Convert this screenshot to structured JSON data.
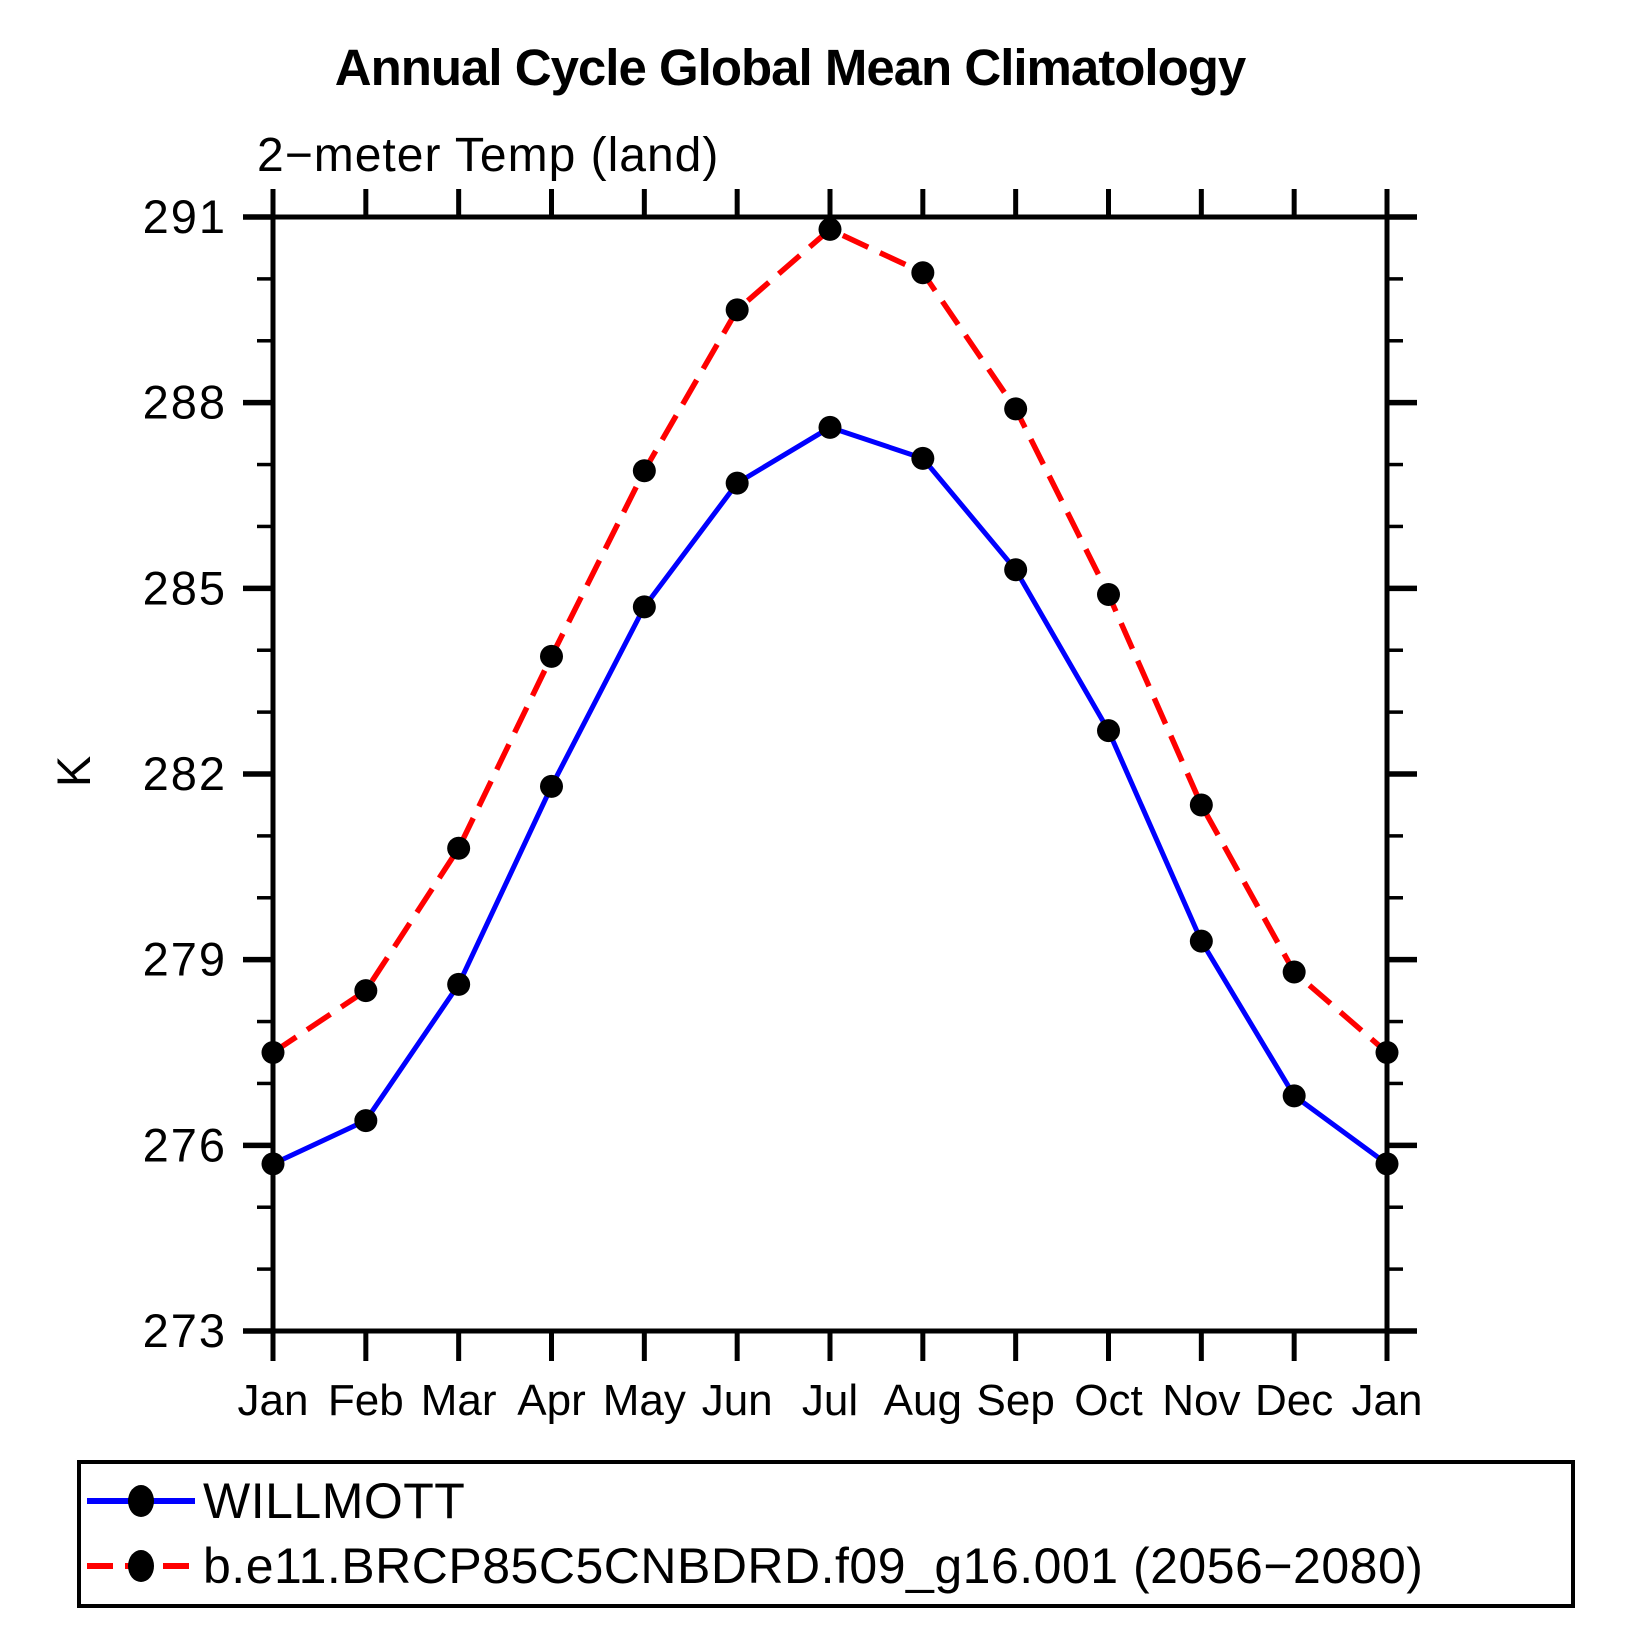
{
  "title": "Annual Cycle Global Mean Climatology",
  "chart_data": {
    "type": "line",
    "title": "Annual Cycle Global Mean Climatology",
    "subtitle": "2−meter Temp (land)",
    "ylabel": "K",
    "x_categories": [
      "Jan",
      "Feb",
      "Mar",
      "Apr",
      "May",
      "Jun",
      "Jul",
      "Aug",
      "Sep",
      "Oct",
      "Nov",
      "Dec",
      "Jan"
    ],
    "ylim": [
      273,
      291
    ],
    "yticks_major": [
      273,
      276,
      279,
      282,
      285,
      288,
      291
    ],
    "ytick_minor_step": 1,
    "grid": false,
    "legend_position": "bottom-left-box",
    "axis_color": "#000000",
    "marker_color": "#000000",
    "marker_shape": "filled-circle",
    "series": [
      {
        "name": "WILLMOTT",
        "color": "#0000ff",
        "line": "solid",
        "values": [
          275.7,
          276.4,
          278.6,
          281.8,
          284.7,
          286.7,
          287.6,
          287.1,
          285.3,
          282.7,
          279.3,
          276.8,
          275.7
        ]
      },
      {
        "name": "b.e11.BRCP85C5CNBDRD.f09_g16.001 (2056−2080)",
        "color": "#ff0000",
        "line": "dashed",
        "values": [
          277.5,
          278.5,
          280.8,
          283.9,
          286.9,
          289.5,
          290.8,
          290.1,
          287.9,
          284.9,
          281.5,
          278.8,
          277.5
        ]
      }
    ]
  }
}
